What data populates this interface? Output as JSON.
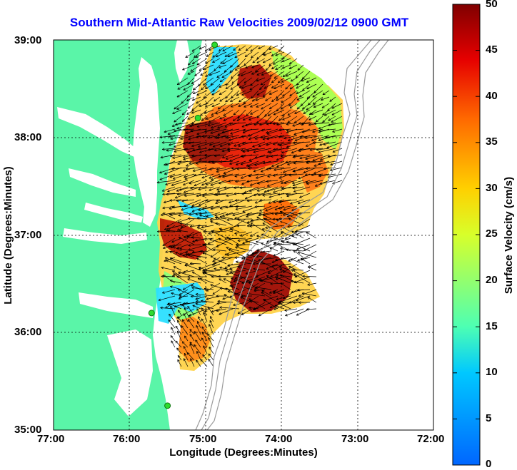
{
  "title": "Southern Mid-Atlantic Raw Velocities 2009/02/12 0900 GMT",
  "xlabel": "Longitude (Degrees:Minutes)",
  "ylabel": "Latitude (Degrees:Minutes)",
  "colorbar": {
    "label": "Surface Velocity (cm/s)",
    "ticks": [
      "0",
      "5",
      "10",
      "15",
      "20",
      "25",
      "30",
      "35",
      "40",
      "45",
      "50"
    ],
    "range": [
      0,
      50
    ]
  },
  "axes": {
    "x_ticks": [
      "77:00",
      "76:00",
      "75:00",
      "74:00",
      "73:00",
      "72:00"
    ],
    "y_ticks": [
      "39:00",
      "38:00",
      "37:00",
      "36:00",
      "35:00"
    ],
    "xlim": [
      -77,
      -72
    ],
    "ylim": [
      35,
      39
    ]
  },
  "colors": {
    "land": "#5af5a8",
    "water": "#ffffff",
    "title": "#0000ff",
    "arrows": "#000000",
    "station": "#2edb2e",
    "bathymetry": "#9a9a9a"
  },
  "stations": [
    {
      "lon": -74.88,
      "lat": 38.95
    },
    {
      "lon": -75.1,
      "lat": 38.2
    },
    {
      "lon": -75.71,
      "lat": 36.2
    },
    {
      "lon": -75.5,
      "lat": 35.25
    }
  ]
}
